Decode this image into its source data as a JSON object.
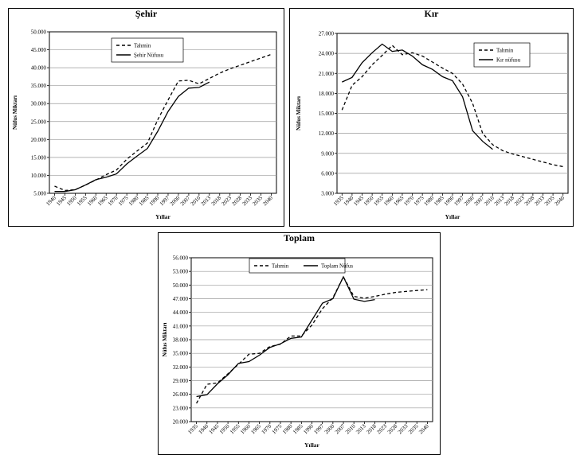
{
  "chart_data": [
    {
      "type": "line",
      "title": "Şehir",
      "xlabel": "Yıllar",
      "ylabel": "Nüfus Miktarı",
      "ylim": [
        5000,
        50000
      ],
      "y_ticks": [
        "5.000",
        "10.000",
        "15.000",
        "20.000",
        "25.000",
        "30.000",
        "35.000",
        "40.000",
        "45.000",
        "50.000"
      ],
      "categories": [
        "1940",
        "1945",
        "1950",
        "1955",
        "1960",
        "1965",
        "1970",
        "1975",
        "1980",
        "1985",
        "1990",
        "1997",
        "2000",
        "2007",
        "2010",
        "2013",
        "2018",
        "2023",
        "2028",
        "2033",
        "2035",
        "2040"
      ],
      "legend_position": "top-center",
      "series": [
        {
          "name": "Tahmin",
          "style": "dashed",
          "values": [
            7000,
            5800,
            6000,
            7300,
            8700,
            10200,
            11500,
            14500,
            16800,
            19000,
            25500,
            31000,
            36300,
            36500,
            35500,
            37000,
            38500,
            39700,
            40700,
            41700,
            42700,
            43700
          ]
        },
        {
          "name": "Şehir Nüfusu",
          "style": "solid",
          "values": [
            5500,
            5500,
            6000,
            7300,
            8800,
            9500,
            10400,
            13200,
            15400,
            17500,
            22300,
            27800,
            32000,
            34300,
            34500,
            36000,
            null,
            null,
            null,
            null,
            null,
            null
          ]
        }
      ]
    },
    {
      "type": "line",
      "title": "Kır",
      "xlabel": "Yıllar",
      "ylabel": "Nüfus Miktarı",
      "ylim": [
        3000,
        27000
      ],
      "y_ticks": [
        "3.000",
        "6.000",
        "9.000",
        "12.000",
        "15.000",
        "18.000",
        "21.000",
        "24.000",
        "27.000"
      ],
      "categories": [
        "1935",
        "1940",
        "1945",
        "1950",
        "1955",
        "1960",
        "1965",
        "1970",
        "1975",
        "1980",
        "1985",
        "1990",
        "1997",
        "2000",
        "2007",
        "2010",
        "2013",
        "2018",
        "2023",
        "2028",
        "2033",
        "2035",
        "2040"
      ],
      "legend_position": "top-right",
      "series": [
        {
          "name": "Tahmin",
          "style": "dashed",
          "values": [
            15500,
            19200,
            20500,
            22300,
            23700,
            25200,
            23800,
            24100,
            23600,
            22700,
            21800,
            21000,
            19400,
            16500,
            12000,
            10300,
            9400,
            8900,
            8500,
            8100,
            7700,
            7300,
            7000
          ]
        },
        {
          "name": "Kır nüfusu",
          "style": "solid",
          "values": [
            19700,
            20400,
            22600,
            24100,
            25400,
            24300,
            24500,
            23600,
            22300,
            21600,
            20500,
            19900,
            17500,
            12400,
            10800,
            9600,
            null,
            null,
            null,
            null,
            null,
            null,
            null
          ]
        }
      ]
    },
    {
      "type": "line",
      "title": "Toplam",
      "xlabel": "Yıllar",
      "ylabel": "Nüfus Miktarı",
      "ylim": [
        20000,
        56000
      ],
      "y_ticks": [
        "20.000",
        "23.000",
        "26.000",
        "29.000",
        "32.000",
        "35.000",
        "38.000",
        "41.000",
        "44.000",
        "47.000",
        "50.000",
        "53.000",
        "56.000"
      ],
      "categories": [
        "1935",
        "1940",
        "1945",
        "1950",
        "1955",
        "1960",
        "1965",
        "1970",
        "1975",
        "1980",
        "1985",
        "1990",
        "1997",
        "2000",
        "2007",
        "2010",
        "2013",
        "2018",
        "2023",
        "2028",
        "2033",
        "2035",
        "2040"
      ],
      "legend_position": "top-center",
      "series": [
        {
          "name": "Tahmin",
          "style": "dashed",
          "values": [
            24000,
            28200,
            28500,
            30500,
            32600,
            34800,
            35000,
            36500,
            37000,
            38800,
            38800,
            41200,
            44800,
            47200,
            51800,
            47500,
            47100,
            47500,
            48000,
            48400,
            48600,
            48800,
            49000
          ]
        },
        {
          "name": "Toplam Nüfus",
          "style": "solid",
          "values": [
            25500,
            25900,
            28300,
            30300,
            32800,
            33200,
            34600,
            36300,
            37100,
            38300,
            38600,
            42300,
            46000,
            47000,
            51800,
            46900,
            46400,
            46800,
            null,
            null,
            null,
            null,
            null
          ]
        }
      ]
    }
  ]
}
